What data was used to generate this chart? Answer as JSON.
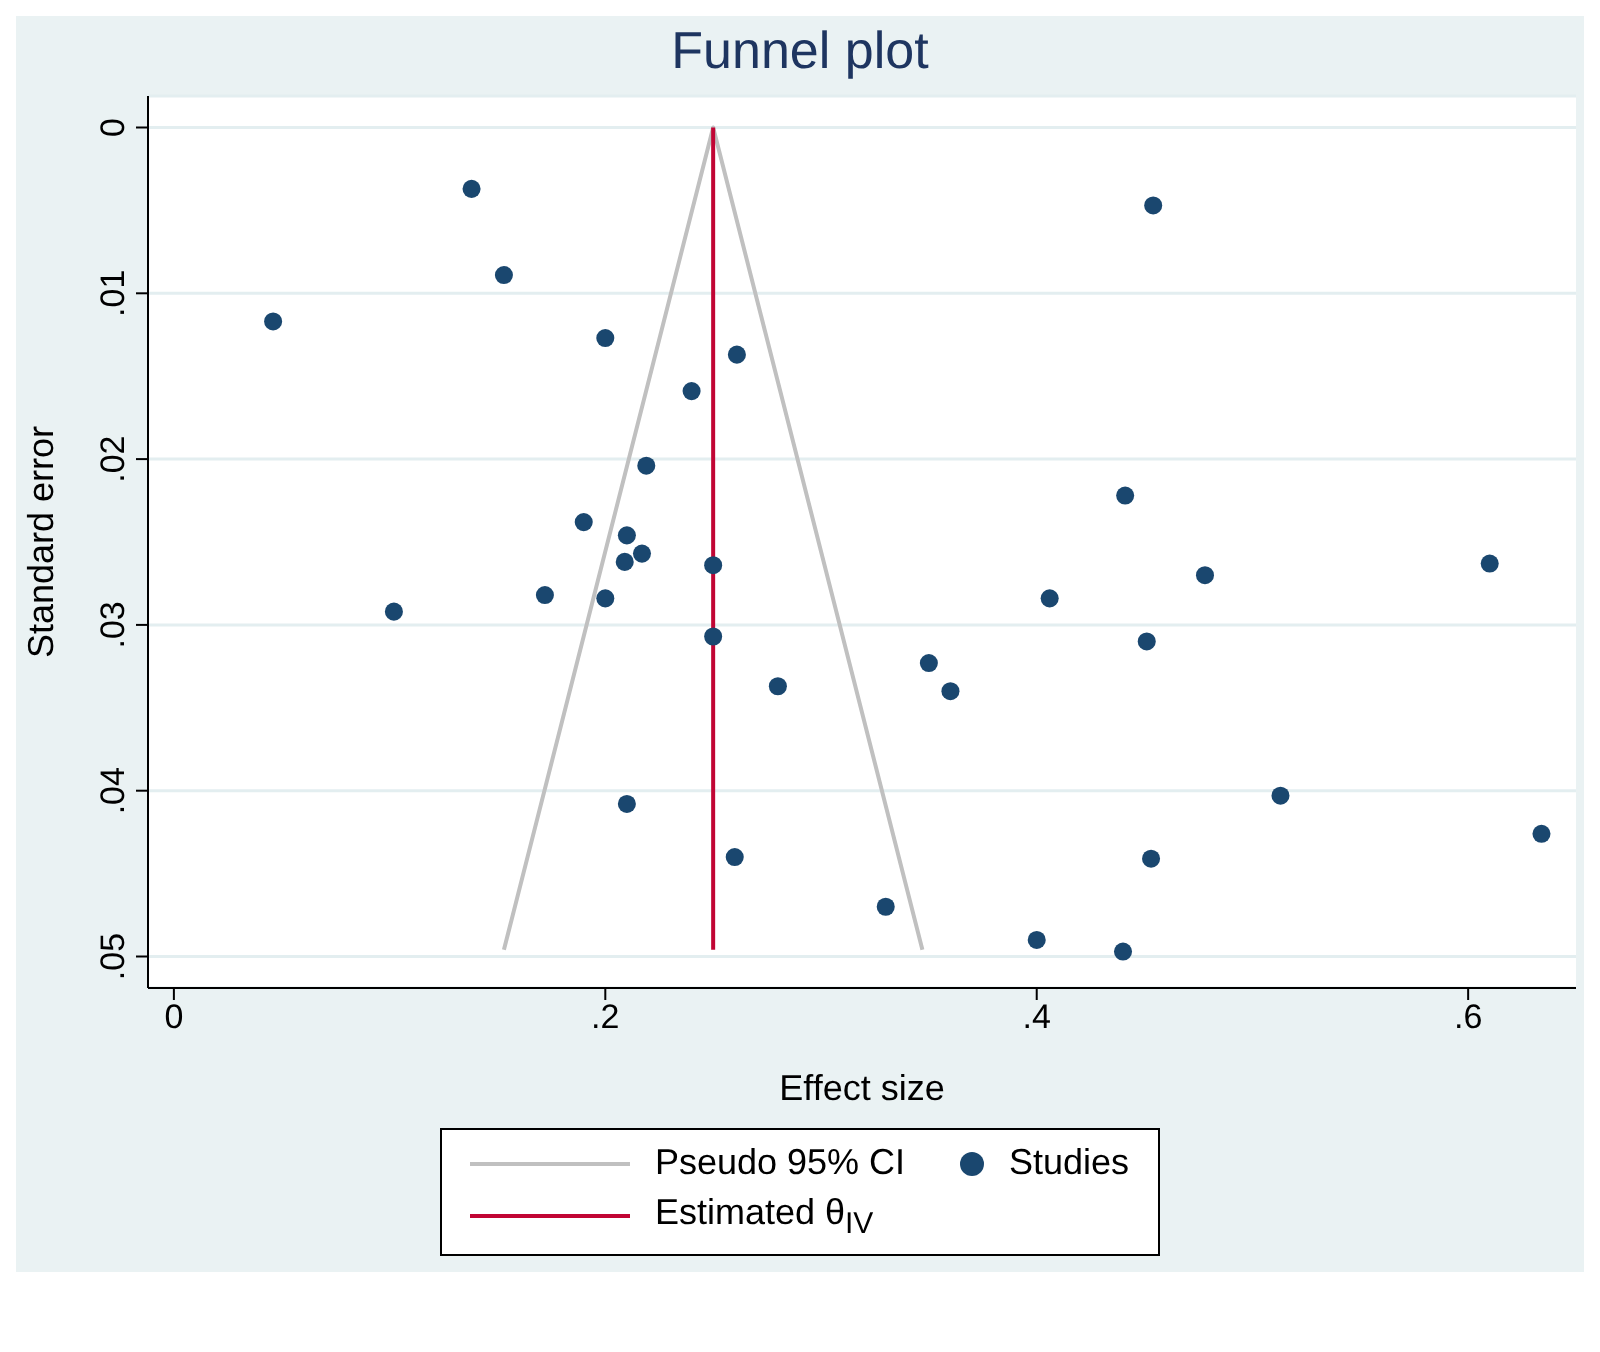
{
  "chart_data": {
    "type": "scatter",
    "title": "Funnel plot",
    "xlabel": "Effect size",
    "ylabel": "Standard error",
    "xlim": [
      -0.012,
      0.65
    ],
    "xticks": [
      0,
      {
        "value": 0.2,
        "label": ".2"
      },
      {
        "value": 0.4,
        "label": ".4"
      },
      {
        "value": 0.6,
        "label": ".6"
      }
    ],
    "ylim": [
      0.0519,
      -0.0019
    ],
    "yticks": [
      0,
      {
        "value": 0.01,
        "label": ".01"
      },
      {
        "value": 0.02,
        "label": ".02"
      },
      {
        "value": 0.03,
        "label": ".03"
      },
      {
        "value": 0.04,
        "label": ".04"
      },
      {
        "value": 0.05,
        "label": ".05"
      }
    ],
    "grid": "y",
    "legend": "bottom",
    "line_style": "solid",
    "series": [
      {
        "name": "Pseudo 95% CI",
        "type": "line",
        "color": "#c0c0c0",
        "x": [
          0.153,
          0.25,
          0.347
        ],
        "values": [
          0.0496,
          0,
          0.0496
        ]
      },
      {
        "name": "Studies",
        "marker": "circle",
        "color": "#1a476f",
        "x": [
          0.138,
          0.153,
          0.046,
          0.2,
          0.261,
          0.24,
          0.219,
          0.19,
          0.454,
          0.441,
          0.21,
          0.209,
          0.217,
          0.25,
          0.172,
          0.2,
          0.102,
          0.25,
          0.28,
          0.21,
          0.26,
          0.61,
          0.478,
          0.406,
          0.451,
          0.35,
          0.36,
          0.513,
          0.634,
          0.453,
          0.33,
          0.4,
          0.44
        ],
        "values": [
          0.0037,
          0.0089,
          0.0117,
          0.0127,
          0.0137,
          0.0159,
          0.0204,
          0.0238,
          0.0047,
          0.0222,
          0.0246,
          0.0262,
          0.0257,
          0.0264,
          0.0282,
          0.0284,
          0.0292,
          0.0307,
          0.0337,
          0.0408,
          0.044,
          0.0263,
          0.027,
          0.0284,
          0.031,
          0.0323,
          0.034,
          0.0403,
          0.0426,
          0.0441,
          0.047,
          0.049,
          0.0497
        ]
      },
      {
        "name": "Estimated θ$_{IV}$",
        "type": "line",
        "color": "#c10534",
        "x": [
          0.25,
          0.25
        ],
        "values": [
          0,
          0.0496
        ]
      }
    ]
  }
}
